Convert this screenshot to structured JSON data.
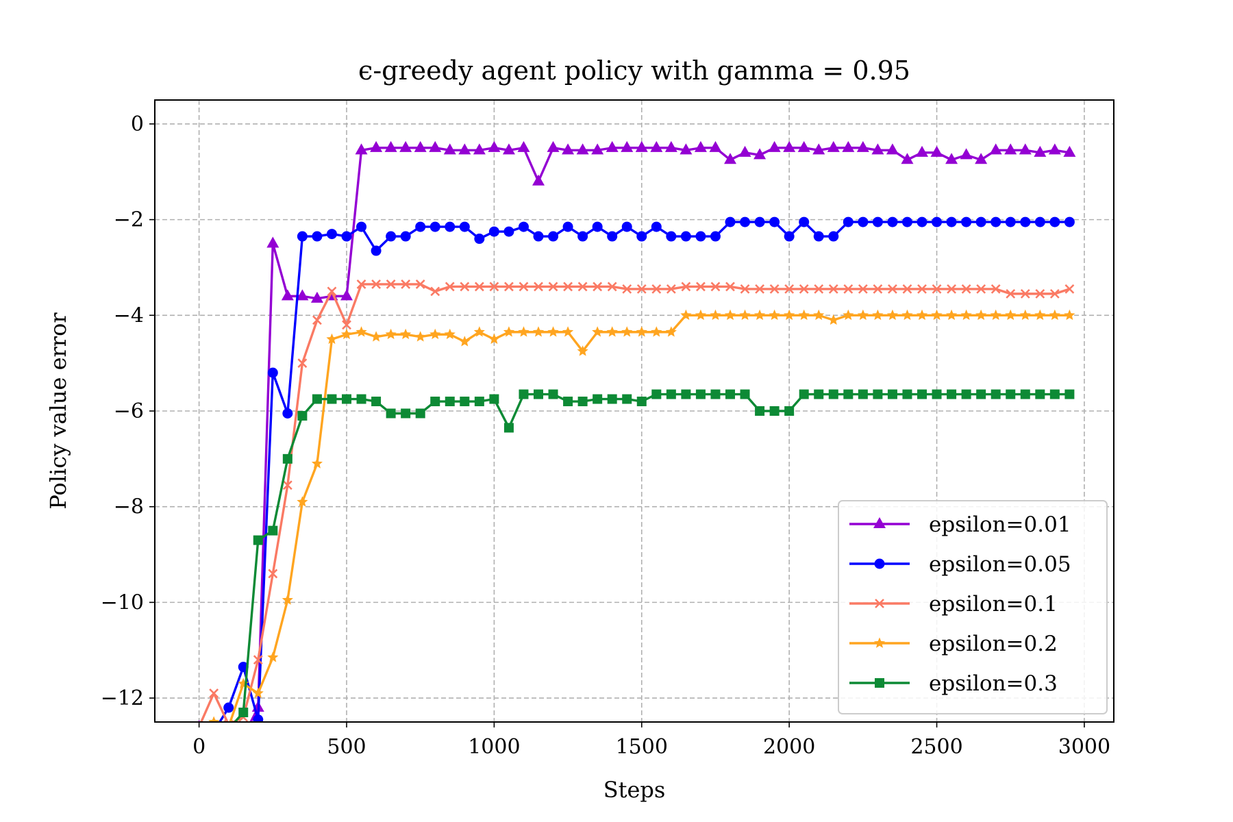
{
  "chart_data": {
    "type": "line",
    "title": "ϵ-greedy agent policy with gamma = 0.95",
    "xlabel": "Steps",
    "ylabel": "Policy value error",
    "xlim": [
      -150,
      3100
    ],
    "ylim": [
      -12.5,
      0.5
    ],
    "xticks": [
      0,
      500,
      1000,
      1500,
      2000,
      2500,
      3000
    ],
    "yticks": [
      0,
      -2,
      -4,
      -6,
      -8,
      -10,
      -12
    ],
    "xtick_labels": [
      "0",
      "500",
      "1000",
      "1500",
      "2000",
      "2500",
      "3000"
    ],
    "ytick_labels": [
      "0",
      "−2",
      "−4",
      "−6",
      "−8",
      "−10",
      "−12"
    ],
    "grid": true,
    "legend_position": "lower-right",
    "x": [
      0,
      50,
      100,
      150,
      200,
      250,
      300,
      350,
      400,
      450,
      500,
      550,
      600,
      650,
      700,
      750,
      800,
      850,
      900,
      950,
      1000,
      1050,
      1100,
      1150,
      1200,
      1250,
      1300,
      1350,
      1400,
      1450,
      1500,
      1550,
      1600,
      1650,
      1700,
      1750,
      1800,
      1850,
      1900,
      1950,
      2000,
      2050,
      2100,
      2150,
      2200,
      2250,
      2300,
      2350,
      2400,
      2450,
      2500,
      2550,
      2600,
      2650,
      2700,
      2750,
      2800,
      2850,
      2900,
      2950
    ],
    "series": [
      {
        "name": "epsilon=0.01",
        "color": "#9400d3",
        "marker": "triangle",
        "values": [
          -12.6,
          -12.8,
          -12.9,
          -12.8,
          -12.2,
          -2.5,
          -3.6,
          -3.6,
          -3.65,
          -3.6,
          -3.6,
          -0.55,
          -0.5,
          -0.5,
          -0.5,
          -0.5,
          -0.5,
          -0.55,
          -0.55,
          -0.55,
          -0.5,
          -0.55,
          -0.5,
          -1.2,
          -0.5,
          -0.55,
          -0.55,
          -0.55,
          -0.5,
          -0.5,
          -0.5,
          -0.5,
          -0.5,
          -0.55,
          -0.5,
          -0.5,
          -0.75,
          -0.6,
          -0.65,
          -0.5,
          -0.5,
          -0.5,
          -0.55,
          -0.5,
          -0.5,
          -0.5,
          -0.55,
          -0.55,
          -0.75,
          -0.6,
          -0.6,
          -0.75,
          -0.65,
          -0.75,
          -0.55,
          -0.55,
          -0.55,
          -0.6,
          -0.55,
          -0.6
        ]
      },
      {
        "name": "epsilon=0.05",
        "color": "#0000ff",
        "marker": "circle",
        "values": [
          -12.6,
          -12.7,
          -12.2,
          -11.35,
          -12.45,
          -5.2,
          -6.05,
          -2.35,
          -2.35,
          -2.3,
          -2.35,
          -2.15,
          -2.65,
          -2.35,
          -2.35,
          -2.15,
          -2.15,
          -2.15,
          -2.15,
          -2.4,
          -2.25,
          -2.25,
          -2.15,
          -2.35,
          -2.35,
          -2.15,
          -2.35,
          -2.15,
          -2.35,
          -2.15,
          -2.35,
          -2.15,
          -2.35,
          -2.35,
          -2.35,
          -2.35,
          -2.05,
          -2.05,
          -2.05,
          -2.05,
          -2.35,
          -2.05,
          -2.35,
          -2.35,
          -2.05,
          -2.05,
          -2.05,
          -2.05,
          -2.05,
          -2.05,
          -2.05,
          -2.05,
          -2.05,
          -2.05,
          -2.05,
          -2.05,
          -2.05,
          -2.05,
          -2.05,
          -2.05
        ]
      },
      {
        "name": "epsilon=0.1",
        "color": "#fa7a64",
        "marker": "x",
        "values": [
          -12.6,
          -11.9,
          -12.55,
          -12.4,
          -11.2,
          -9.4,
          -7.55,
          -5.0,
          -4.1,
          -3.5,
          -4.2,
          -3.35,
          -3.35,
          -3.35,
          -3.35,
          -3.35,
          -3.5,
          -3.4,
          -3.4,
          -3.4,
          -3.4,
          -3.4,
          -3.4,
          -3.4,
          -3.4,
          -3.4,
          -3.4,
          -3.4,
          -3.4,
          -3.45,
          -3.45,
          -3.45,
          -3.45,
          -3.4,
          -3.4,
          -3.4,
          -3.4,
          -3.45,
          -3.45,
          -3.45,
          -3.45,
          -3.45,
          -3.45,
          -3.45,
          -3.45,
          -3.45,
          -3.45,
          -3.45,
          -3.45,
          -3.45,
          -3.45,
          -3.45,
          -3.45,
          -3.45,
          -3.45,
          -3.55,
          -3.55,
          -3.55,
          -3.55,
          -3.45
        ]
      },
      {
        "name": "epsilon=0.2",
        "color": "#ffa520",
        "marker": "star",
        "values": [
          -12.6,
          -12.5,
          -12.6,
          -11.7,
          -11.9,
          -11.15,
          -9.95,
          -7.9,
          -7.1,
          -4.5,
          -4.4,
          -4.35,
          -4.45,
          -4.4,
          -4.4,
          -4.45,
          -4.4,
          -4.4,
          -4.55,
          -4.35,
          -4.5,
          -4.35,
          -4.35,
          -4.35,
          -4.35,
          -4.35,
          -4.75,
          -4.35,
          -4.35,
          -4.35,
          -4.35,
          -4.35,
          -4.35,
          -4.0,
          -4.0,
          -4.0,
          -4.0,
          -4.0,
          -4.0,
          -4.0,
          -4.0,
          -4.0,
          -4.0,
          -4.1,
          -4.0,
          -4.0,
          -4.0,
          -4.0,
          -4.0,
          -4.0,
          -4.0,
          -4.0,
          -4.0,
          -4.0,
          -4.0,
          -4.0,
          -4.0,
          -4.0,
          -4.0,
          -4.0
        ]
      },
      {
        "name": "epsilon=0.3",
        "color": "#0d8a35",
        "marker": "square",
        "values": [
          -12.6,
          -12.6,
          -12.65,
          -12.3,
          -8.7,
          -8.5,
          -7.0,
          -6.1,
          -5.75,
          -5.75,
          -5.75,
          -5.75,
          -5.8,
          -6.05,
          -6.05,
          -6.05,
          -5.8,
          -5.8,
          -5.8,
          -5.8,
          -5.75,
          -6.35,
          -5.65,
          -5.65,
          -5.65,
          -5.8,
          -5.8,
          -5.75,
          -5.75,
          -5.75,
          -5.8,
          -5.65,
          -5.65,
          -5.65,
          -5.65,
          -5.65,
          -5.65,
          -5.65,
          -6.0,
          -6.0,
          -6.0,
          -5.65,
          -5.65,
          -5.65,
          -5.65,
          -5.65,
          -5.65,
          -5.65,
          -5.65,
          -5.65,
          -5.65,
          -5.65,
          -5.65,
          -5.65,
          -5.65,
          -5.65,
          -5.65,
          -5.65,
          -5.65,
          -5.65
        ]
      }
    ]
  }
}
